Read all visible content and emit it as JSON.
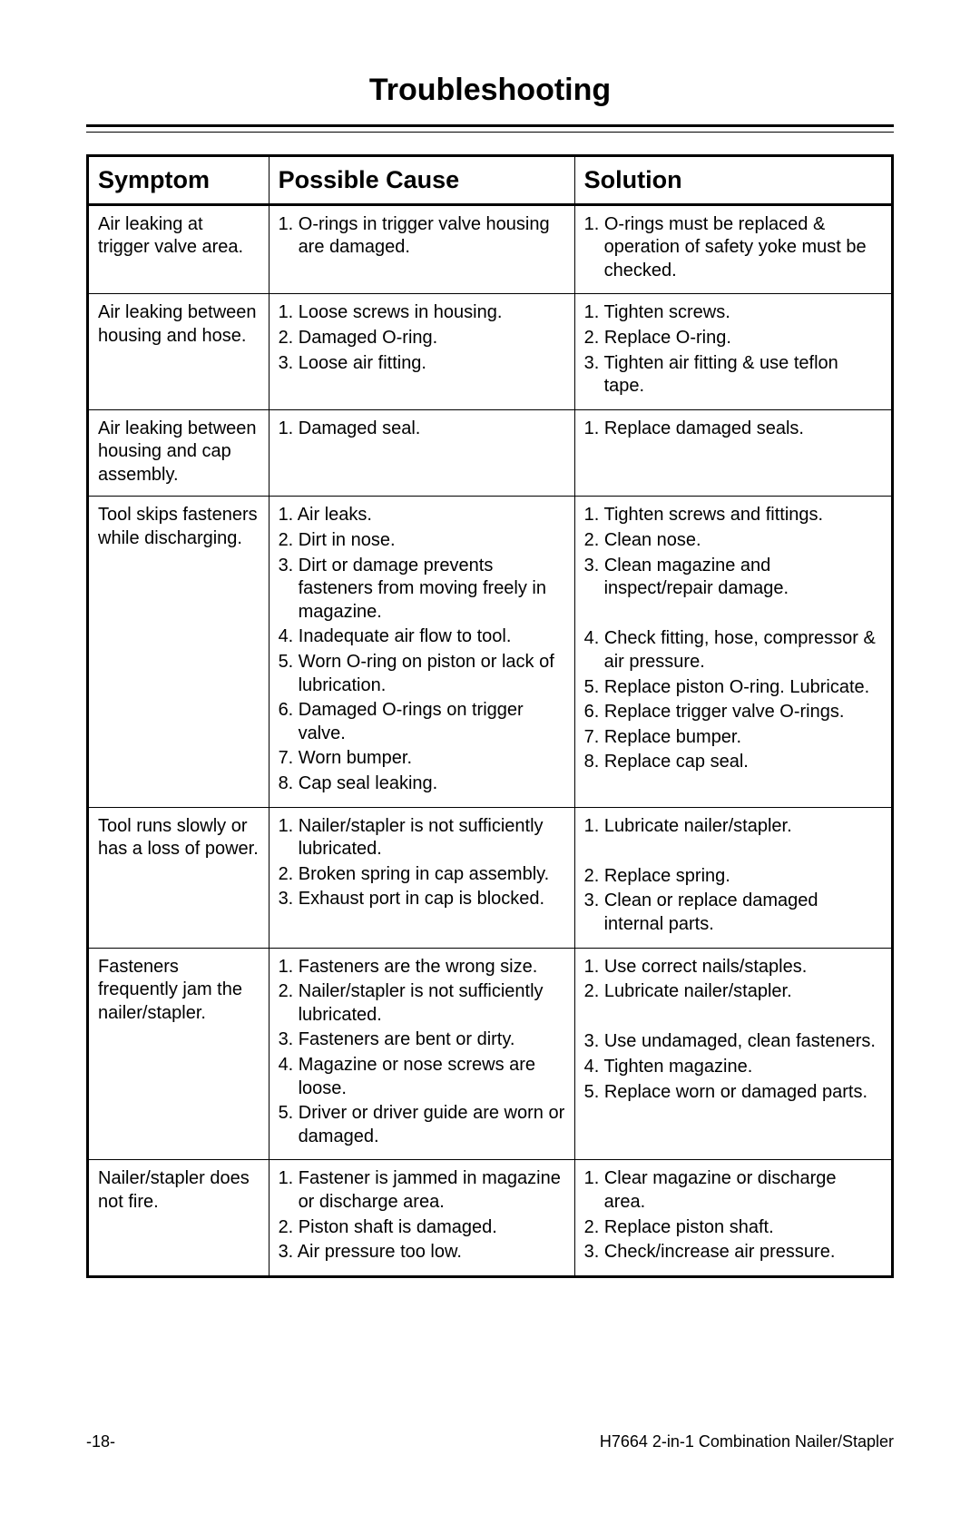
{
  "page_title": "Troubleshooting",
  "columns": [
    "Symptom",
    "Possible Cause",
    "Solution"
  ],
  "rows": [
    {
      "symptom": "Air leaking at trigger valve area.",
      "causes": [
        "O-rings in trigger valve housing are damaged."
      ],
      "solutions": [
        "O-rings must be replaced & operation of safety yoke must be checked."
      ]
    },
    {
      "symptom": "Air leaking between housing and hose.",
      "causes": [
        "Loose screws in housing.",
        "Damaged O-ring.",
        "Loose air fitting."
      ],
      "solutions": [
        "Tighten screws.",
        "Replace O-ring.",
        "Tighten air fitting & use teflon tape."
      ]
    },
    {
      "symptom": "Air leaking between housing and cap assembly.",
      "causes": [
        "Damaged seal."
      ],
      "solutions": [
        "Replace damaged seals."
      ]
    },
    {
      "symptom": "Tool skips fasteners while discharging.",
      "causes": [
        "Air leaks.",
        "Dirt in nose.",
        "Dirt or damage prevents fasteners from moving freely in magazine.",
        "Inadequate air flow to tool.",
        "Worn O-ring on piston or lack of lubrication.",
        "Damaged O-rings on trigger valve.",
        "Worn bumper.",
        "Cap seal leaking."
      ],
      "solutions": [
        "Tighten screws and fittings.",
        "Clean nose.",
        "Clean magazine and inspect/repair damage.",
        "Check fitting, hose, compressor & air pressure.",
        "Replace piston O-ring. Lubricate.",
        "Replace trigger valve O-rings.",
        "Replace bumper.",
        "Replace cap seal."
      ],
      "solution_spacer_after": 2
    },
    {
      "symptom": "Tool runs slowly or has a loss of power.",
      "causes": [
        "Nailer/stapler is not sufficiently lubricated.",
        "Broken spring in cap assembly.",
        "Exhaust port in cap is blocked."
      ],
      "solutions": [
        "Lubricate nailer/stapler.",
        "Replace spring.",
        "Clean or replace damaged internal parts."
      ],
      "solution_spacer_after": 0
    },
    {
      "symptom": "Fasteners frequently jam the nailer/stapler.",
      "causes": [
        "Fasteners are the wrong size.",
        "Nailer/stapler is not sufficiently lubricated.",
        "Fasteners are bent or dirty.",
        "Magazine or nose screws are loose.",
        "Driver or driver guide are worn or damaged."
      ],
      "solutions": [
        "Use correct nails/staples.",
        "Lubricate nailer/stapler.",
        "Use undamaged, clean fasteners.",
        "Tighten magazine.",
        "Replace worn or damaged parts."
      ],
      "solution_spacer_after": 1
    },
    {
      "symptom": "Nailer/stapler does not fire.",
      "causes": [
        "Fastener is jammed in magazine or discharge area.",
        "Piston shaft is damaged.",
        "Air pressure too low."
      ],
      "solutions": [
        "Clear magazine or discharge area.",
        "Replace piston shaft.",
        "Check/increase air pressure."
      ]
    }
  ],
  "footer": {
    "page_number_text": "-18-",
    "doc_title": "H7664 2-in-1 Combination Nailer/Stapler"
  },
  "colors": {
    "text": "#000000",
    "background": "#ffffff",
    "border": "#000000"
  },
  "column_widths_pct": [
    22.5,
    38,
    39.5
  ],
  "font_sizes": {
    "title": 34,
    "th": 27,
    "td": 20,
    "footer": 18
  }
}
